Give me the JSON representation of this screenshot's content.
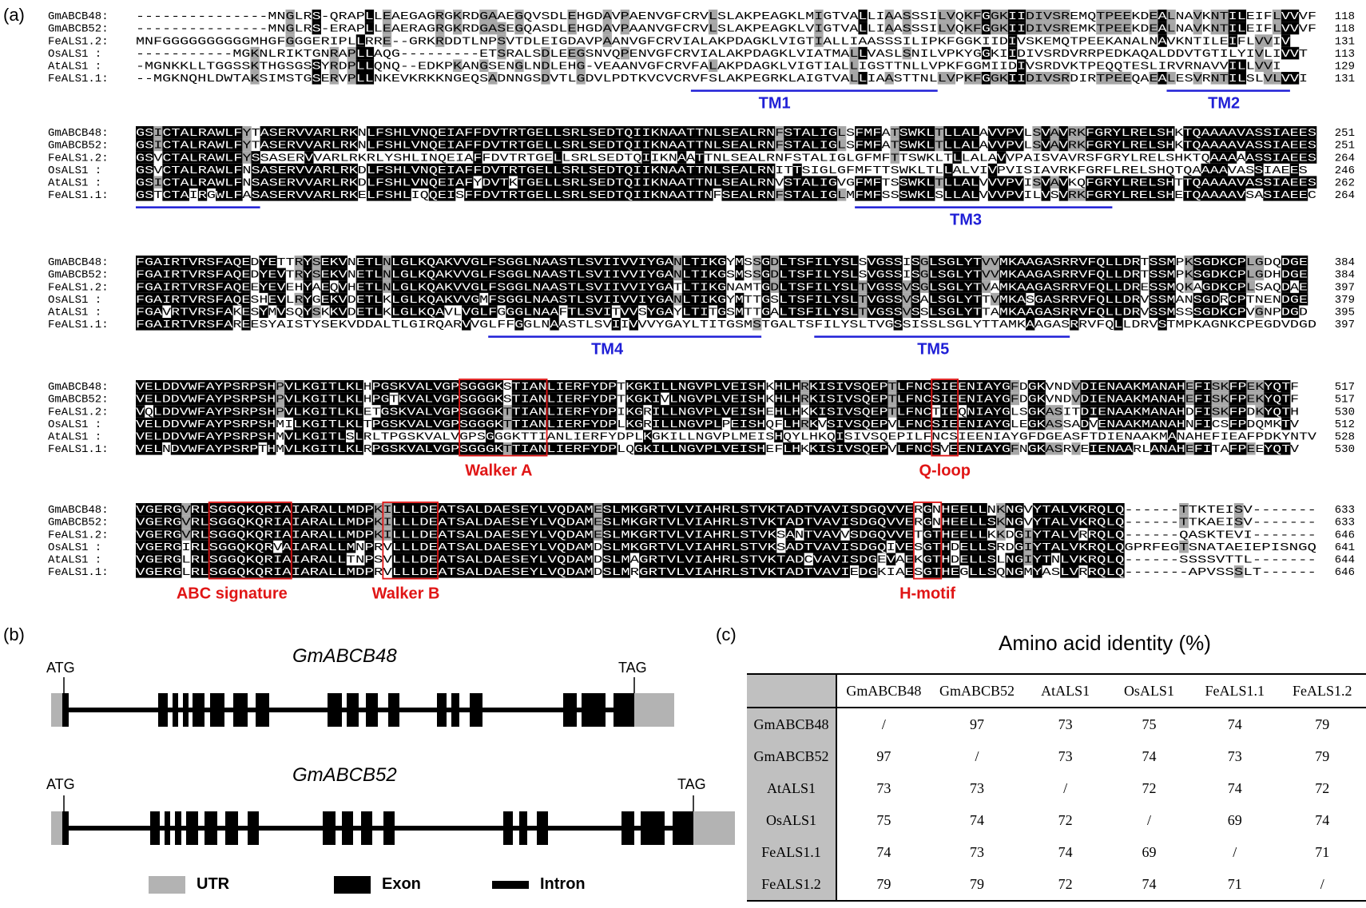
{
  "panels": {
    "a": "(a)",
    "b": "(b)",
    "c": "(c)"
  },
  "alignment": {
    "blocks": [
      {
        "rows": [
          {
            "name": "GmABCB48: ",
            "seq": "---------------MNGLRS-QRAPLLEAEGAGRGKRDGAAEGQVSDLEHGDAVPAENVGFCRVLSLAKPEAGKLMIGTVALLIAASSSILVQKFGGKIIDIVSREMQTPEEKDEALNAVKNTILEIFLVVVF",
            "end": "118"
          },
          {
            "name": "GmABCB52: ",
            "seq": "---------------MNGLRS-ERAPLLEAERAGRGKRDGASEGQASDLEHGDAVPAANVGFCRVLSLAKPEAGKLVIGTVALLIAASSSILVQKFGGKIIDIVSREMKTPEEKDEALNAVKNTILEIFLVVVF",
            "end": "118"
          },
          {
            "name": "FeALS1.2: ",
            "seq": "MNFGGGGGGGGGGMHGFGGGERIPLLRRE--GRKRDDTLNPSVTDLEIGDAVPAANVGFCRVIALAKPDAGKLVIGTIALLIAASSSILIPKFGGKIIDIVSKEMQTPEEKANALNAVKNTILEIFLVVIV",
            "end": "131"
          },
          {
            "name": "OsALS1   : ",
            "seq": "-----------MGKNLRIKTGNRAPLLAQG---------ETSRALSDLEEGSNVQPENVGFCRVIALAKPDAGKLVIATMALLVASLSNILVPKYGGKIIDIVSRDVRRPEDKAQALDDVTGTILYIVLIVVT",
            "end": "113"
          },
          {
            "name": "AtALS1   : ",
            "seq": "-MGNKKLLTGGSSKTHGSGSSYRDPLLQNQ--EDKPKANGSENGLNDLEHG-VEAANVGFCRVFALAKPDAGKLVIGTIALLIGSTTNLLVPKFGGMIIDIVSRDVKTPEQQTESLIRVRNAVVILLVVI",
            "end": "129"
          },
          {
            "name": "FeALS1.1: ",
            "seq": "--MGKNQHLDWTAKSIMSTGSERVPLLNKEVKRKKNGEQSADNNGSDVTLGDVLPDTKVCVCRVFSLAKPEGRKLAIGTVALLIAASTTNLLVPKFGGKIIDIVSRDIRTPEEQAEALESVRNTILSLVLVVI",
            "end": "131"
          }
        ],
        "labels": [
          {
            "text": "TM1",
            "kind": "tm"
          },
          {
            "text": "TM2",
            "kind": "tm"
          }
        ]
      },
      {
        "rows": [
          {
            "name": "GmABCB48: ",
            "seq": "GSICTALRAWLFYTASERVVARLRKNLFSHLVNQEIAFFDVTRTGELLSRLSEDTQIIKNAATTNLSEALRNFSTALIGLSFMFATSWKLTLLALAVVPVLSVAVRKFGRYLRELSHKTQAAAAVASSIAEES",
            "end": "251"
          },
          {
            "name": "GmABCB52: ",
            "seq": "GSICTALRAWLFYTASERVVARLRKNLFSHLVNQEIAFFDVTRTGELLSRLSEDTQIIKNAATTNLSEALRNFSTALIGLSFMFATSWKLTLLALAVVPVLSVAVRKFGRYLRELSHKTQAAAAVASSIAEES",
            "end": "251"
          },
          {
            "name": "FeALS1.2: ",
            "seq": "GSVCTALRAWLFYSSASERVVARLRKRLYSHLINQEIAFFDVTRTGELLSRLSEDTQIIKNAATTNLSEALRNFSTALIGLGFMFTTSWKLTLLALAVVPAISVAVRSFGRYLRELSHKTQAAAAASSIAEES",
            "end": "264"
          },
          {
            "name": "OsALS1   : ",
            "seq": "GSVCTALRAWLFNSASERVVARLRKDLFSHLVNQEIAFFDVTRTGELLSRLSEDTQIIKNAATTNLSEALRNITTSIGLGFMFTTSWKLTLLALVIVPVISIAVRKFGRFLRELSHQTQAAAAVASSIAEES",
            "end": "246"
          },
          {
            "name": "AtALS1   : ",
            "seq": "GSICTALRAWLFNSASERVVARLRKDLFSHLVNQEIAFYDVTKTGELLSRLSEDTQIIKNAATTNLSEALRNVSTALIGVGFMFTSSWKLTLLALVVVPVISVAVKQFGRYLRELSHTTQAAAAVASSIAEES",
            "end": "262"
          },
          {
            "name": "FeALS1.1: ",
            "seq": "GSTCTAIRGWLFASASERVVARLRKELFSHLIQQEISFFDVTRTGELLSRLSEDTQIIKNAATTNFSEALRNFSTALIGLMFMFSSSWKLSLLALVVVPVILVSVRKFGRYLRELSHETQAAAAVSASIAEEC",
            "end": "264"
          }
        ],
        "labels": [
          {
            "text": "TM3",
            "kind": "tm"
          }
        ]
      },
      {
        "rows": [
          {
            "name": "GmABCB48: ",
            "seq": "FGAIRTVRSFAQEDYETTRYSEKVNETLNLGLKQAKVVGLFSGGLNAASTLSVIIVVIYGANLTIKGYMSSGDLTSFILYSLSVGSSISGLSGLYTVVMKAAGASRRVFQLLDRTSSMPKSGDKCPLGDQDGE",
            "end": "384"
          },
          {
            "name": "GmABCB52: ",
            "seq": "FGAIRTVRSFAQEDYEVTRYSEKVNETLNLGLKQAKVVGLFSGGLNAASTLSVIIVVIYGANLTIKGSMSSGDLTSFILYSLSVGSSISGLSGLYTVVMKAAGASRRVFQLLDRTSSMPKSGDKCPLGDHDGE",
            "end": "384"
          },
          {
            "name": "FeALS1.2: ",
            "seq": "FGAIRTVRSFAQEEYEVEHYAEQVHETLNLGLKQAKVVGLFSGGLNAASTLSVIIVVIYGATLTIKGNAMTGDLTSFILYSLTVGSSVSGLSGLYTVAMKAAGASRRVFQLLDRESSMQKAGDKCPLSAQDAE",
            "end": "397"
          },
          {
            "name": "OsALS1   : ",
            "seq": "FGAIRTVRSFAQESHEVLRYGEKVDETLKLGLKQAKVVGMFSGGLNAASTLSVIIVVIYGANLTIKGYMTTGSLTSFILYSLTVGSSVSALSGLYTTVMKASGASRRVFQLLDRVSSMANSGDRCPTNENDGE",
            "end": "379"
          },
          {
            "name": "AtALS1   : ",
            "seq": "FGAVRTVRSFAKESYMVSQYSKKVDETLKLGLKQAVLVGLFGGGLNAAFTLSVITVVSYGAYLTITGSMTTGALTSFILYSLTVGSSVSSLSGLYTTAMKAAGASRRVFQLLDRVSSMSSSGDKCPVGNPDGD",
            "end": "395"
          },
          {
            "name": "FeALS1.1: ",
            "seq": "FGAIRTVRSFAREESYAISTYSEKVDDALTLGIRQARVVGLFFGGLNAASTLSVIIVVVYGAYLTITGSMSTGALTSFILYSLTVGSSISSLSGLYTTAMKAAGASRRVFQLLDRVSTMPKAGNKCPEGDVDGD",
            "end": "397"
          }
        ],
        "labels": [
          {
            "text": "TM4",
            "kind": "tm"
          },
          {
            "text": "TM5",
            "kind": "tm"
          }
        ]
      },
      {
        "rows": [
          {
            "name": "GmABCB48: ",
            "seq": "VELDDVWFAYPSRPSHPVLKGITLKLHPGSKVALVGPSGGGKSTIANLIERFYDPTKGKILLNGVPLVEISHKHLHRKISIVSQEPTLFNCSIEENIAYGFDGKVNDVDIENAAKMANAHEFISKFPEKYQTF",
            "end": "517"
          },
          {
            "name": "GmABCB52: ",
            "seq": "VELDDVWFAYPSRPSHPVLKGITLKLHPGTKVALVGPSGGGKSTIANLIERFYDPTKGKIVLNGVPLVEISHKHLHRKISIVSQEPTLFNCSIEENIAYGFDGKVNDVDIENAAKMANAHEFISKFPEKYQTF",
            "end": "517"
          },
          {
            "name": "FeALS1.2: ",
            "seq": "VQLDDVWFAYPSRPSHPVLKGITLKLETGSKVALVGPSGGGKTTIANLIERFYDPIKGRILLNGVPLVEISHEHLHKKISIVSQEPTLFNCTIEQNIAYGLSGKASITDIENAAKMANAHDFISKFPDKYQTH",
            "end": "530"
          },
          {
            "name": "OsALS1   : ",
            "seq": "VELDDVWFAYPSRPSHMILKGITLKLTPGSKVALVGPSGGGKTTIANLIERFYDPLKGRILLNGVPLPEISHQFLHRKVSIVSQEPVLFNCSIEENIAYGLEGKASSADVENAAKMANAHNFICSFPDQMKTV",
            "end": "512"
          },
          {
            "name": "AtALS1   : ",
            "seq": "VELDDVWFAYPSRPSHMVLKGITLSLRLTPGSKVALVGPSGGGKTTIANLIERFYDPLKGKILLNGVPLMEISHQYLHKQISIVSQEPILFNCSIEENIAYGFDGEASFTDIENAAKMANAHEFIEAFPDKYNTV",
            "end": "528"
          },
          {
            "name": "FeALS1.1: ",
            "seq": "VELNDVWFAYPSRPTHMVLKGITLKLRPGSKVALVGPSGGGKTTIANLIERFYDPLQGKILLNGVPLVEISHEFLHKKISIVSQEPVLFNCSVEENIAYGFNGKASRVEIENAARLANAHEFITAFPEEYQTV",
            "end": "530"
          }
        ],
        "labels": [
          {
            "text": "Walker A",
            "kind": "motif"
          },
          {
            "text": "Q-loop",
            "kind": "motif"
          }
        ]
      },
      {
        "rows": [
          {
            "name": "GmABCB48: ",
            "seq": "VGERGVRLSGGQKQRIAIARALLMDPKILLLDEATSALDAESEYLVQDAMESLMKGRTVLVIAHRLSTVKTADTVAVISDGQVVERGNHEELLNKNGVYTALVKRQLQ------TTKTEISV-------",
            "end": "633"
          },
          {
            "name": "GmABCB52: ",
            "seq": "VGERGVRLSGGQKQRIAIARALLMDPKILLLDEATSALDAESEYLVQDAMESLMKGRTVLVIAHRLSTVKTADTVAVISDGQVVERGNHEELLSKNGVYTALVKRQLQ------TTKAEISV-------",
            "end": "633"
          },
          {
            "name": "FeALS1.2: ",
            "seq": "VGERGVRLSGGQKQRIAIARALLMDPKILLLDEATSALDAESEYLVQDAMESLMKGRTVLVIAHRLSTVKSANTVAVVSDGQVVETGTHEELLKKDGIYTALVRRQLQ------QASKTEVI-------",
            "end": "646"
          },
          {
            "name": "OsALS1   : ",
            "seq": "VGERGIRLSGGQKQRVAIARALLMNPRVLLLDEATSALDAESEYLVQDAMDSLMKGRTVLVIAHRLSTVKSADTVAVISDGQIVESGTHDELLSRDGIYTALVKRQLQGPRFEGTSNATAEIEPISNGQ",
            "end": "641"
          },
          {
            "name": "AtALS1   : ",
            "seq": "VGERGLRLSGGQKQRIAIARALLTNPSVLLLDEATSALDAESEYLVQDAMDSLMAGRTVLVIAHRLSTVKTADCVAVISDGEVAEKGTHDELLSLNGIYTNLVKRQLQ------SSSSVTTL-------",
            "end": "644"
          },
          {
            "name": "FeALS1.1: ",
            "seq": "VGERGLRLSGGQKQRIAIARALLMDPRVLLLDEATSALDAESEYLVQDAMDSLMRGRTVLVIAHRLSTVKTADTVAVIEDGKIAESGTHEGLLSQNGMYASLVRRQLQ-------APVSSSLT------",
            "end": "646"
          }
        ],
        "labels": [
          {
            "text": "ABC signature",
            "kind": "motif"
          },
          {
            "text": "Walker B",
            "kind": "motif"
          },
          {
            "text": "H-motif",
            "kind": "motif"
          }
        ]
      }
    ]
  },
  "gene_structures": [
    {
      "name": "GmABCB48",
      "start_codon": "ATG",
      "stop_codon": "TAG"
    },
    {
      "name": "GmABCB52",
      "start_codon": "ATG",
      "stop_codon": "TAG"
    }
  ],
  "legend": {
    "utr": "UTR",
    "exon": "Exon",
    "intron": "Intron"
  },
  "identity": {
    "title": "Amino acid identity (%)",
    "columns": [
      "GmABCB48",
      "GmABCB52",
      "AtALS1",
      "OsALS1",
      "FeALS1.1",
      "FeALS1.2"
    ],
    "rows": [
      {
        "name": "GmABCB48",
        "values": [
          "/",
          "97",
          "73",
          "75",
          "74",
          "79"
        ]
      },
      {
        "name": "GmABCB52",
        "values": [
          "97",
          "/",
          "73",
          "74",
          "73",
          "79"
        ]
      },
      {
        "name": "AtALS1",
        "values": [
          "73",
          "73",
          "/",
          "72",
          "74",
          "72"
        ]
      },
      {
        "name": "OsALS1",
        "values": [
          "75",
          "74",
          "72",
          "/",
          "69",
          "74"
        ]
      },
      {
        "name": "FeALS1.1",
        "values": [
          "74",
          "73",
          "74",
          "69",
          "/",
          "71"
        ]
      },
      {
        "name": "FeALS1.2",
        "values": [
          "79",
          "79",
          "72",
          "74",
          "71",
          "/"
        ]
      }
    ]
  },
  "colors": {
    "conserved": "#000000",
    "similar": "#a6a6a6",
    "tm": "#1f1fd6",
    "motif": "#e01515",
    "utr": "#b3b3b3"
  }
}
